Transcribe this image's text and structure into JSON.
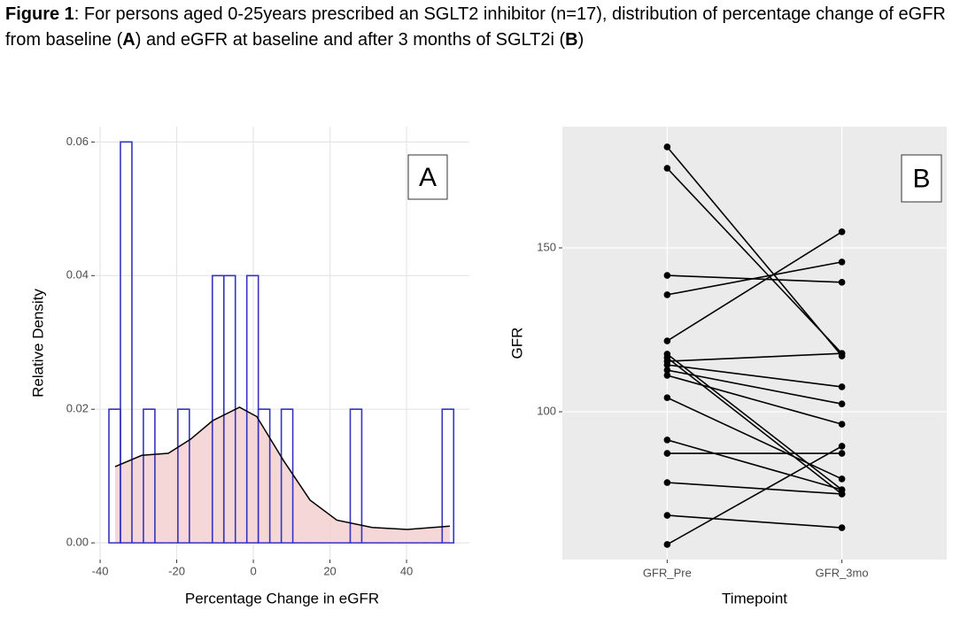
{
  "caption": {
    "label": "Figure 1",
    "segments": [
      {
        "text": ": For persons aged 0-25years prescribed an SGLT2 inhibitor (n=17), distribution of percentage change of eGFR from baseline (",
        "bold": false
      },
      {
        "text": "A",
        "bold": true
      },
      {
        "text": ") and eGFR at baseline and after 3 months of SGLT2i (",
        "bold": false
      },
      {
        "text": "B",
        "bold": true
      },
      {
        "text": ")",
        "bold": false
      }
    ]
  },
  "chart_data": [
    {
      "type": "histogram",
      "panel_label": "A",
      "xlabel": "Percentage Change in eGFR",
      "ylabel": "Relative Density",
      "bins": [
        -37.7,
        -34.7,
        -31.7,
        -28.7,
        -25.7,
        -22.7,
        -19.7,
        -16.7,
        -13.7,
        -10.7,
        -7.7,
        -4.7,
        -1.7,
        1.3,
        4.3,
        7.3,
        10.3,
        13.3,
        16.3,
        19.3,
        22.3,
        25.3,
        28.3,
        31.3,
        34.3,
        37.3,
        40.3,
        43.3,
        46.3,
        49.3,
        52.3
      ],
      "values": [
        0.02,
        0.06,
        0,
        0.02,
        0,
        0,
        0.02,
        0,
        0,
        0.04,
        0.04,
        0,
        0.04,
        0.02,
        0,
        0.02,
        0,
        0,
        0,
        0,
        0,
        0.02,
        0,
        0,
        0,
        0,
        0,
        0,
        0,
        0.02
      ],
      "color": "#3535c0",
      "density": {
        "color": "#000000",
        "fill": "#f3d0d0",
        "x": [
          -36.1,
          -29.1,
          -22.2,
          -16.4,
          -10.6,
          -3.6,
          0.9,
          7.9,
          14.8,
          21.8,
          31.0,
          40.2,
          51.3
        ],
        "y": [
          0.0114,
          0.0131,
          0.0134,
          0.0155,
          0.0183,
          0.0203,
          0.0189,
          0.0123,
          0.0064,
          0.0034,
          0.0023,
          0.002,
          0.0025
        ]
      },
      "xlim": [
        -41.4,
        56.4
      ],
      "xticks": [
        -40,
        -20,
        0,
        20,
        40
      ],
      "ylim": [
        -0.0025,
        0.0623
      ],
      "yticks": [
        {
          "value": 0,
          "label": "0.00"
        },
        {
          "value": 0.02,
          "label": "0.02"
        },
        {
          "value": 0.04,
          "label": "0.04"
        },
        {
          "value": 0.06,
          "label": "0.06"
        }
      ],
      "grid": true
    },
    {
      "type": "paired",
      "panel_label": "B",
      "xlabel": "Timepoint",
      "ylabel": "GFR",
      "categories": [
        "GFR_Pre",
        "GFR_3mo"
      ],
      "color": "#000000",
      "series": [
        {
          "values": [
            180.8,
            117.0
          ]
        },
        {
          "values": [
            174.3,
            117.8
          ]
        },
        {
          "values": [
            141.6,
            139.5
          ]
        },
        {
          "values": [
            135.7,
            145.7
          ]
        },
        {
          "values": [
            121.6,
            154.9
          ]
        },
        {
          "values": [
            117.6,
            76.2
          ]
        },
        {
          "values": [
            116.5,
            74.9
          ]
        },
        {
          "values": [
            115.4,
            117.8
          ]
        },
        {
          "values": [
            114.3,
            107.6
          ]
        },
        {
          "values": [
            112.7,
            102.4
          ]
        },
        {
          "values": [
            111.1,
            96.2
          ]
        },
        {
          "values": [
            104.3,
            79.5
          ]
        },
        {
          "values": [
            91.4,
            76.2
          ]
        },
        {
          "values": [
            87.3,
            87.3
          ]
        },
        {
          "values": [
            78.4,
            74.9
          ]
        },
        {
          "values": [
            68.4,
            64.6
          ]
        },
        {
          "values": [
            59.5,
            89.5
          ]
        }
      ],
      "ylim": [
        54.9,
        187.0
      ],
      "yticks": [
        100,
        150
      ],
      "grid": true
    }
  ]
}
